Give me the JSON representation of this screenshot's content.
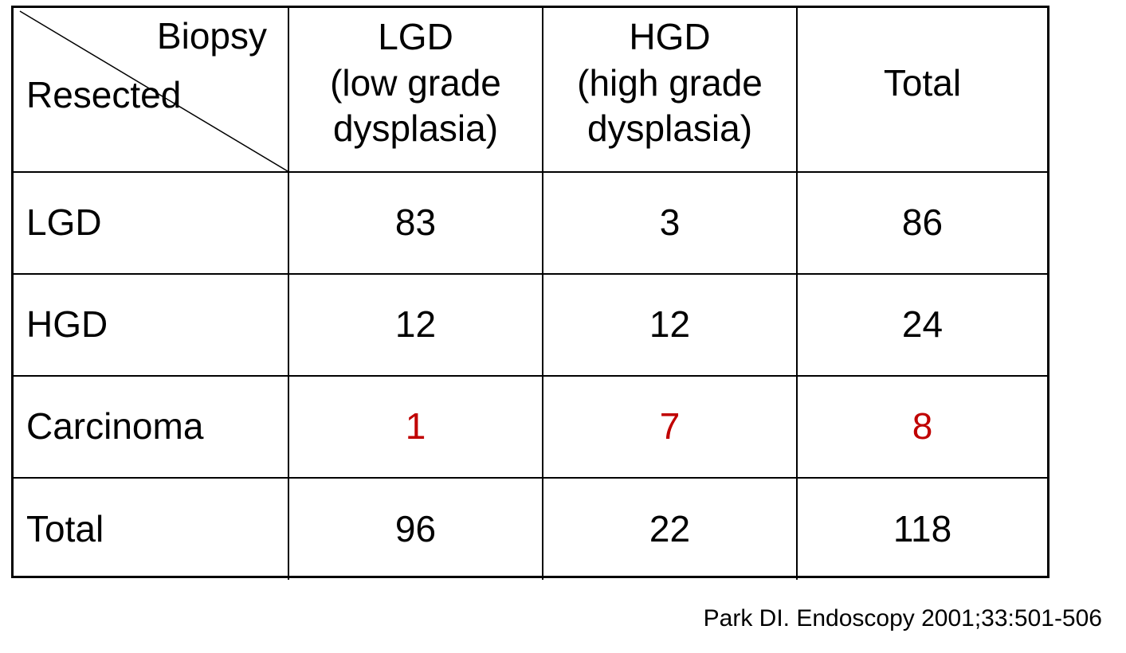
{
  "chart_data": {
    "type": "table",
    "corner": {
      "column_axis_label": "Biopsy",
      "row_axis_label": "Resected"
    },
    "columns": [
      {
        "line1": "LGD",
        "line2": "(low grade",
        "line3": "dysplasia)"
      },
      {
        "line1": "HGD",
        "line2": "(high grade",
        "line3": "dysplasia)"
      },
      {
        "line1": "Total"
      }
    ],
    "rows": [
      {
        "label": "LGD",
        "values": [
          "83",
          "3",
          "86"
        ],
        "highlight": false
      },
      {
        "label": "HGD",
        "values": [
          "12",
          "12",
          "24"
        ],
        "highlight": false
      },
      {
        "label": "Carcinoma",
        "values": [
          "1",
          "7",
          "8"
        ],
        "highlight": true
      },
      {
        "label": "Total",
        "values": [
          "96",
          "22",
          "118"
        ],
        "highlight": false
      }
    ],
    "highlight_color": "#c00000"
  },
  "citation": "Park DI. Endoscopy 2001;33:501-506"
}
